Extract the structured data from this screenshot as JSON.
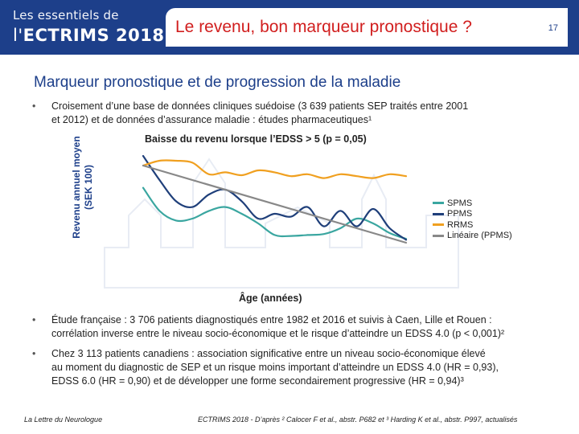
{
  "header": {
    "brand_line1": "Les essentiels de",
    "brand_prefix": "l'",
    "brand_name": "ECTRIMS 2018",
    "title": "Le revenu, bon marqueur pronostique ?",
    "page_number": "17"
  },
  "subtitle": "Marqueur pronostique et de progression de la maladie",
  "bullets_top": [
    {
      "marker": "•",
      "lines": [
        "Croisement d’une base de données cliniques suédoise (3 639 patients SEP traités entre 2001",
        "et 2012) et de données d’assurance maladie : études pharmaceutiques¹"
      ]
    }
  ],
  "chart": {
    "title": "Baisse du revenu lorsque l’EDSS > 5 (p = 0,05)",
    "ylabel_line1": "Revenu annuel moyen",
    "ylabel_line2": "(SEK 100)",
    "xlabel": "Âge (années)",
    "legend": [
      {
        "label": "SPMS",
        "color": "#3aa6a0"
      },
      {
        "label": "PPMS",
        "color": "#1f3f7a"
      },
      {
        "label": "RRMS",
        "color": "#f0a020"
      },
      {
        "label": "Linéaire (PPMS)",
        "color": "#888888"
      }
    ]
  },
  "chart_data": {
    "type": "line",
    "title": "Baisse du revenu lorsque l’EDSS > 5 (p = 0,05)",
    "xlabel": "Âge (années)",
    "ylabel": "Revenu annuel moyen (SEK 100)",
    "x": [
      0,
      1,
      2,
      3,
      4,
      5,
      6,
      7,
      8,
      9,
      10,
      11,
      12,
      13,
      14,
      15,
      16
    ],
    "ylim": [
      0,
      100
    ],
    "series": [
      {
        "name": "SPMS",
        "color": "#3aa6a0",
        "values": [
          62,
          38,
          28,
          30,
          38,
          42,
          35,
          25,
          13,
          12,
          13,
          14,
          20,
          30,
          25,
          15,
          9
        ]
      },
      {
        "name": "PPMS",
        "color": "#1f3f7a",
        "values": [
          95,
          70,
          48,
          42,
          55,
          60,
          48,
          30,
          35,
          32,
          42,
          22,
          38,
          22,
          40,
          20,
          8
        ]
      },
      {
        "name": "RRMS",
        "color": "#f0a020",
        "values": [
          85,
          90,
          90,
          88,
          76,
          78,
          75,
          80,
          78,
          74,
          76,
          72,
          76,
          74,
          72,
          76,
          74
        ]
      },
      {
        "name": "Linéaire (PPMS)",
        "color": "#888888",
        "values": [
          85,
          80,
          75,
          70,
          65,
          60,
          55,
          50,
          45,
          40,
          35,
          30,
          25,
          20,
          15,
          10,
          5
        ]
      }
    ]
  },
  "bullets_bottom": [
    {
      "marker": "•",
      "lines": [
        "Étude française : 3 706 patients diagnostiqués entre 1982 et 2016 et suivis à Caen, Lille et Rouen :",
        "corrélation inverse entre le niveau socio-économique et le risque d’atteindre un EDSS 4.0 (p < 0,001)²"
      ]
    },
    {
      "marker": "•",
      "lines": [
        "Chez 3 113 patients canadiens : association significative entre un niveau socio-économique élevé",
        "au moment du diagnostic de SEP et un risque moins important d’atteindre un EDSS 4.0 (HR = 0,93),",
        "EDSS 6.0 (HR = 0,90) et de développer une forme secondairement progressive (HR = 0,94)³"
      ]
    }
  ],
  "footer": {
    "left": "La Lettre du Neurologue",
    "right": "ECTRIMS 2018 - D’après ² Calocer F et al., abstr. P682 et ³ Harding K et al., abstr. P997, actualisés"
  }
}
